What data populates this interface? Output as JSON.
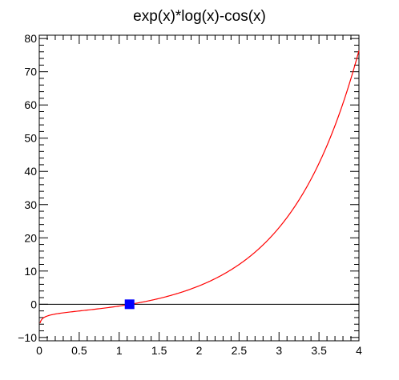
{
  "chart_data": {
    "type": "line",
    "title": "exp(x)*log(x)-cos(x)",
    "xlabel": "",
    "ylabel": "",
    "xlim": [
      0,
      4
    ],
    "ylim": [
      -11,
      81
    ],
    "xticks": [
      0,
      0.5,
      1,
      1.5,
      2,
      2.5,
      3,
      3.5,
      4
    ],
    "xtick_labels": [
      "0",
      "0.5",
      "1",
      "1.5",
      "2",
      "2.5",
      "3",
      "3.5",
      "4"
    ],
    "yticks": [
      -10,
      0,
      10,
      20,
      30,
      40,
      50,
      60,
      70,
      80
    ],
    "ytick_labels": [
      "−10",
      "0",
      "10",
      "20",
      "30",
      "40",
      "50",
      "60",
      "70",
      "80"
    ],
    "grid": false,
    "zero_line": true,
    "series": [
      {
        "function": "exp(x)*log(x)-cos(x)",
        "x_range": [
          0.01,
          4
        ],
        "color": "#ff0000"
      }
    ],
    "marker": {
      "x": 1.13,
      "y": 0,
      "shape": "square",
      "color": "#0000ff"
    },
    "axis_color": "#000000"
  }
}
